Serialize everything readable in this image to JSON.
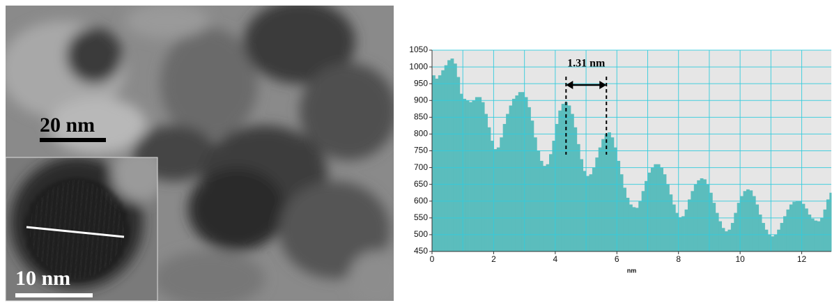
{
  "image": {
    "scale_bar_main": "20 nm",
    "scale_bar_inset": "10 nm"
  },
  "chart_data": {
    "type": "profile",
    "annotation": {
      "text": "1.31 nm",
      "x": [
        4.35,
        5.66
      ]
    },
    "x_label": "nm",
    "color": "#5bbdbd",
    "grid_color": "#33ccdd",
    "background": "#e6e6e6",
    "xlim": [
      0,
      12.96
    ],
    "ylim": [
      450,
      1050
    ],
    "xticks": [
      0,
      2,
      4,
      6,
      8,
      10,
      12
    ],
    "xgrid": [
      1,
      3,
      5,
      7,
      9,
      11
    ],
    "yticks": [
      450,
      500,
      550,
      600,
      650,
      700,
      750,
      800,
      850,
      900,
      950,
      1000,
      1050
    ],
    "bin_width": 0.1,
    "x": [
      0,
      0.1,
      0.2,
      0.3,
      0.4,
      0.5,
      0.6,
      0.7,
      0.8,
      0.9,
      1,
      1.1,
      1.2,
      1.3,
      1.4,
      1.5,
      1.6,
      1.7,
      1.8,
      1.9,
      2,
      2.1,
      2.2,
      2.3,
      2.4,
      2.5,
      2.6,
      2.7,
      2.8,
      2.9,
      3,
      3.1,
      3.2,
      3.3,
      3.4,
      3.5,
      3.6,
      3.7,
      3.8,
      3.9,
      4,
      4.1,
      4.2,
      4.3,
      4.4,
      4.5,
      4.6,
      4.7,
      4.8,
      4.9,
      5,
      5.1,
      5.2,
      5.3,
      5.4,
      5.5,
      5.6,
      5.7,
      5.8,
      5.9,
      6,
      6.1,
      6.2,
      6.3,
      6.4,
      6.5,
      6.6,
      6.7,
      6.8,
      6.9,
      7,
      7.1,
      7.2,
      7.3,
      7.4,
      7.5,
      7.6,
      7.7,
      7.8,
      7.9,
      8,
      8.1,
      8.2,
      8.3,
      8.4,
      8.5,
      8.6,
      8.7,
      8.8,
      8.9,
      9,
      9.1,
      9.2,
      9.3,
      9.4,
      9.5,
      9.6,
      9.7,
      9.8,
      9.9,
      10,
      10.1,
      10.2,
      10.3,
      10.4,
      10.5,
      10.6,
      10.7,
      10.8,
      10.9,
      11,
      11.1,
      11.2,
      11.3,
      11.4,
      11.5,
      11.6,
      11.7,
      11.8,
      11.9,
      12,
      12.1,
      12.2,
      12.3,
      12.4,
      12.5,
      12.6,
      12.7,
      12.8,
      12.9
    ],
    "values": [
      975,
      965,
      975,
      990,
      1005,
      1020,
      1025,
      1010,
      970,
      920,
      905,
      900,
      895,
      900,
      910,
      910,
      895,
      860,
      820,
      780,
      755,
      760,
      790,
      830,
      860,
      885,
      905,
      915,
      925,
      925,
      910,
      880,
      840,
      790,
      750,
      720,
      705,
      710,
      740,
      780,
      830,
      870,
      890,
      895,
      885,
      860,
      820,
      770,
      725,
      690,
      675,
      680,
      700,
      730,
      760,
      785,
      800,
      805,
      790,
      760,
      720,
      680,
      640,
      610,
      590,
      582,
      580,
      600,
      630,
      660,
      685,
      700,
      710,
      710,
      700,
      680,
      650,
      620,
      590,
      565,
      552,
      555,
      575,
      605,
      630,
      650,
      662,
      668,
      665,
      650,
      625,
      595,
      565,
      540,
      520,
      510,
      515,
      535,
      565,
      595,
      615,
      630,
      635,
      632,
      615,
      590,
      560,
      535,
      515,
      500,
      495,
      500,
      515,
      535,
      555,
      575,
      590,
      598,
      600,
      600,
      592,
      578,
      560,
      548,
      542,
      540,
      550,
      575,
      605,
      625
    ]
  }
}
